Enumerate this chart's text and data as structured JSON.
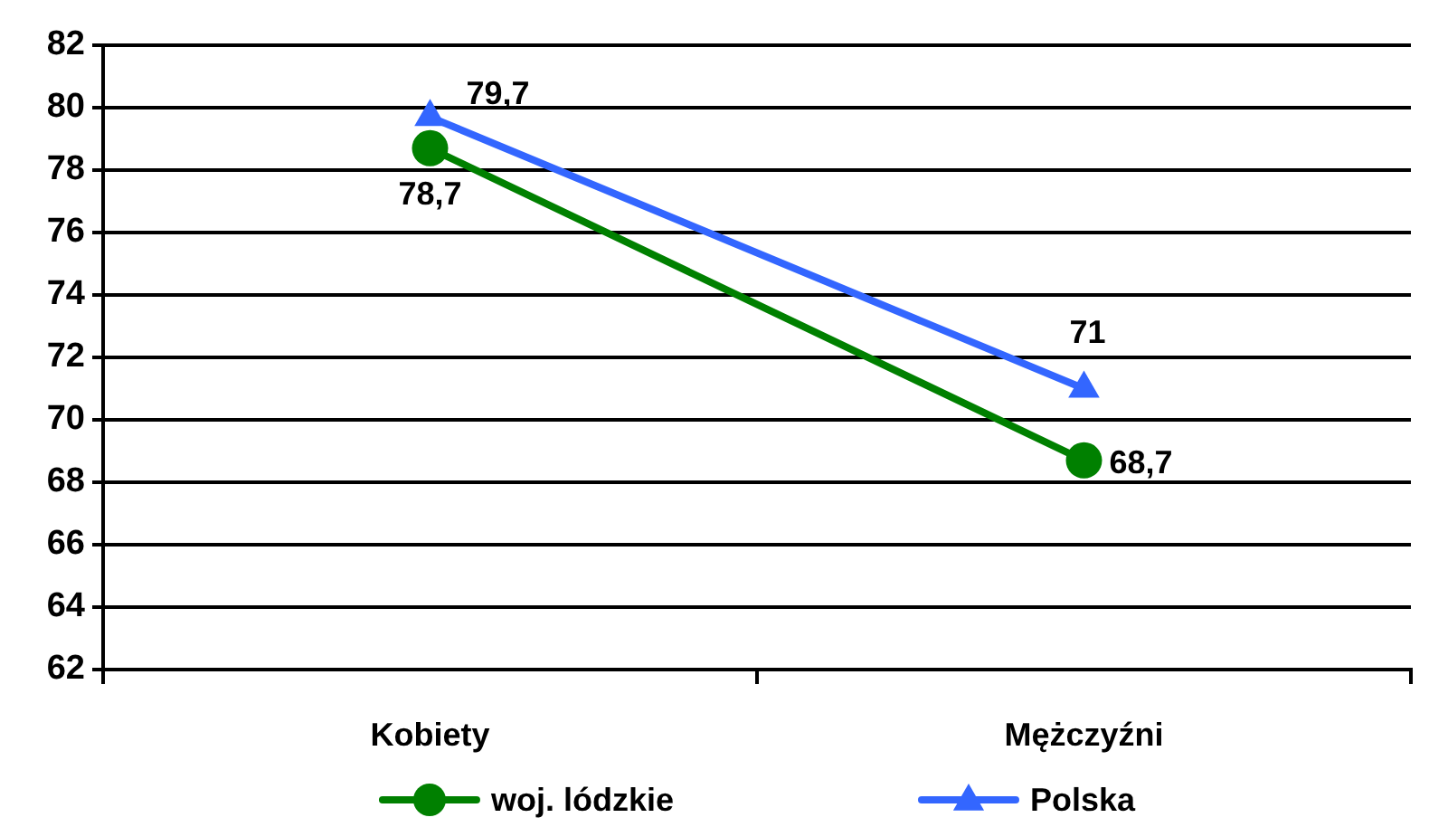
{
  "chart_data": {
    "type": "line",
    "categories": [
      "Kobiety",
      "Mężczyźni"
    ],
    "series": [
      {
        "name": "woj. lódzkie",
        "color": "#008000",
        "marker": "circle",
        "values": [
          78.7,
          68.7
        ],
        "value_labels": [
          "78,7",
          "68,7"
        ]
      },
      {
        "name": "Polska",
        "color": "#3366ff",
        "marker": "triangle",
        "values": [
          79.7,
          71
        ],
        "value_labels": [
          "79,7",
          "71"
        ]
      }
    ],
    "ylim": [
      62,
      82
    ],
    "yticks": [
      62,
      64,
      66,
      68,
      70,
      72,
      74,
      76,
      78,
      80,
      82
    ],
    "grid": "y",
    "legend": "bottom"
  }
}
